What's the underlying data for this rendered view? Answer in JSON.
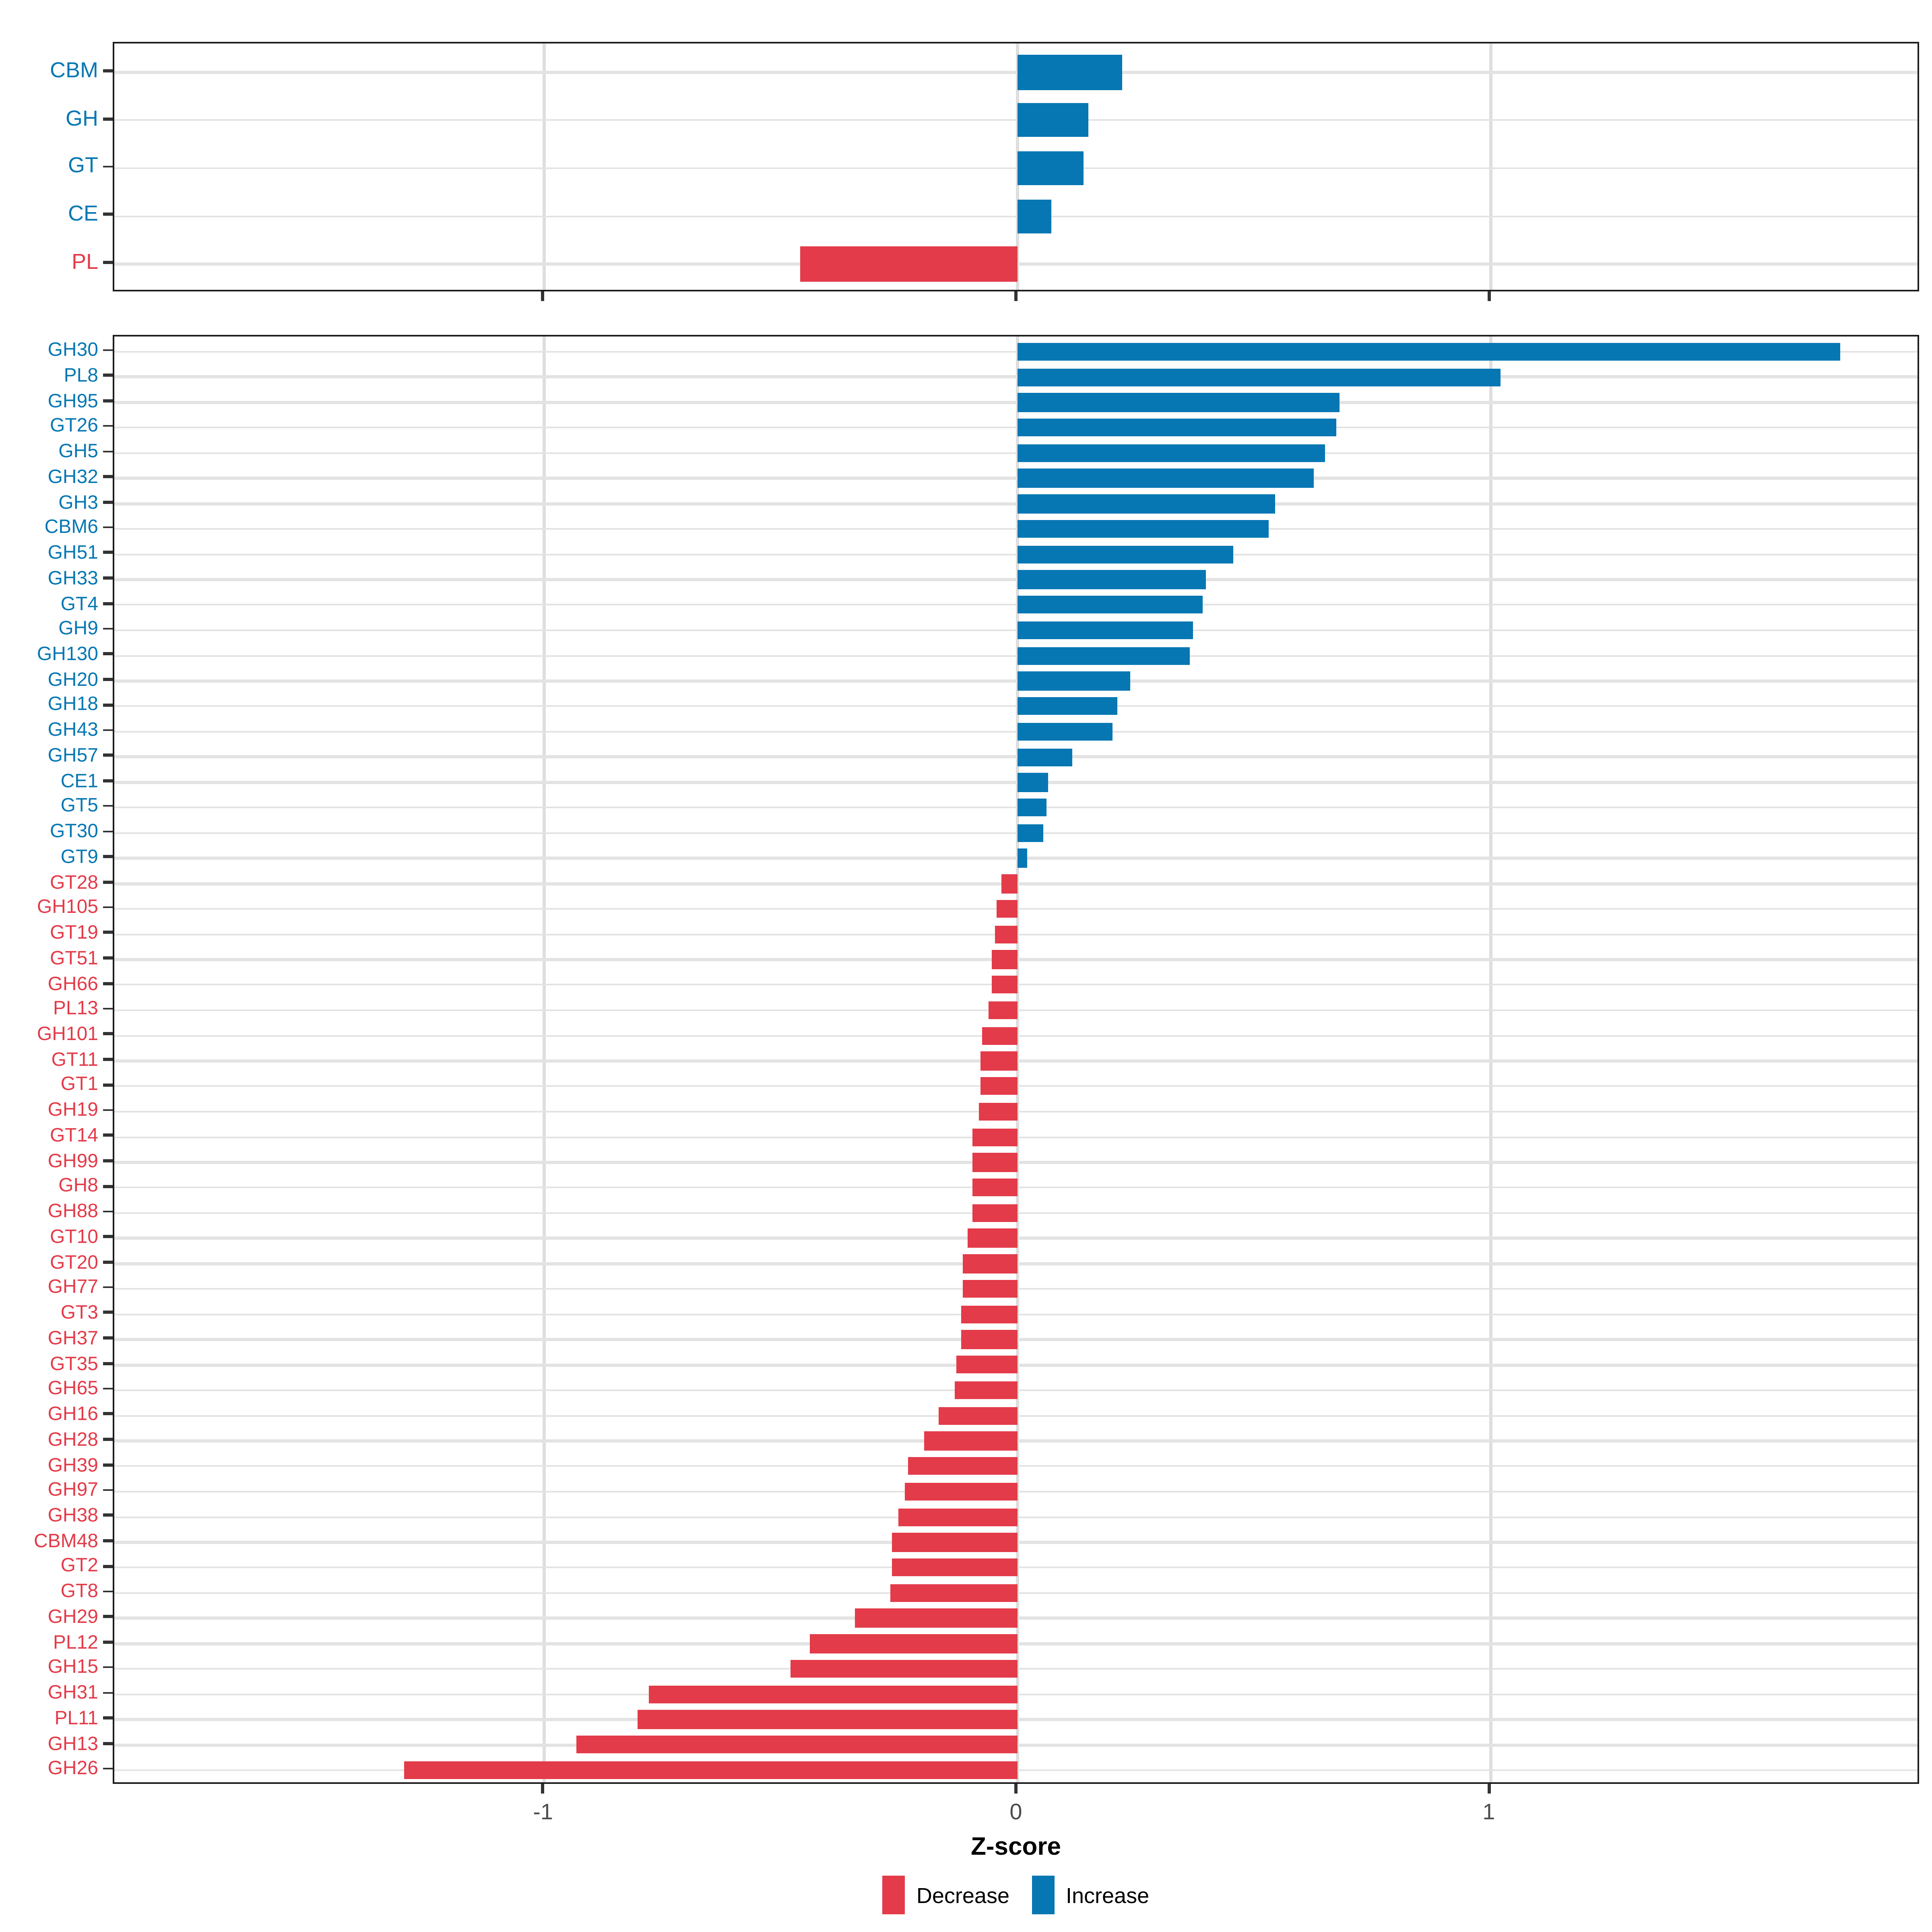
{
  "colors": {
    "decrease": "#E33B49",
    "increase": "#0677B3",
    "grid": "#e3e3e3",
    "axis_text": "#4d4d4d",
    "panel_border": "#1c1c1c",
    "background": "#ffffff"
  },
  "x_axis": {
    "label": "Z-score",
    "ticks": [
      -1,
      0,
      1
    ],
    "tick_labels": [
      "-1",
      "0",
      "1"
    ]
  },
  "legend": {
    "items": [
      {
        "label": "Decrease",
        "key": "decrease"
      },
      {
        "label": "Increase",
        "key": "increase"
      }
    ]
  },
  "chart_data": [
    {
      "id": "class-panel",
      "type": "bar",
      "orientation": "horizontal",
      "title": "",
      "xlabel": "Z-score",
      "ylabel": "",
      "xlim": [
        -1.91,
        1.91
      ],
      "grid": true,
      "x_ticks": [
        -1,
        0,
        1
      ],
      "categories": [
        "CBM",
        "GH",
        "GT",
        "CE",
        "PL"
      ],
      "values": [
        0.22,
        0.15,
        0.14,
        0.07,
        -0.46
      ]
    },
    {
      "id": "family-panel",
      "type": "bar",
      "orientation": "horizontal",
      "title": "",
      "xlabel": "Z-score",
      "ylabel": "",
      "xlim": [
        -1.91,
        1.91
      ],
      "grid": true,
      "x_ticks": [
        -1,
        0,
        1
      ],
      "categories": [
        "GH30",
        "PL8",
        "GH95",
        "GT26",
        "GH5",
        "GH32",
        "GH3",
        "CBM6",
        "GH51",
        "GH33",
        "GT4",
        "GH9",
        "GH130",
        "GH20",
        "GH18",
        "GH43",
        "GH57",
        "CE1",
        "GT5",
        "GT30",
        "GT9",
        "GT28",
        "GH105",
        "GT19",
        "GT51",
        "GH66",
        "PL13",
        "GH101",
        "GT11",
        "GT1",
        "GH19",
        "GT14",
        "GH99",
        "GH8",
        "GH88",
        "GT10",
        "GT20",
        "GH77",
        "GT3",
        "GH37",
        "GT35",
        "GH65",
        "GH16",
        "GH28",
        "GH39",
        "GH97",
        "GH38",
        "CBM48",
        "GT2",
        "GT8",
        "GH29",
        "PL12",
        "GH15",
        "GH31",
        "PL11",
        "GH13",
        "GH26"
      ],
      "values": [
        1.74,
        1.02,
        0.68,
        0.675,
        0.65,
        0.625,
        0.545,
        0.53,
        0.455,
        0.4,
        0.39,
        0.37,
        0.365,
        0.24,
        0.21,
        0.2,
        0.117,
        0.066,
        0.06,
        0.056,
        0.021,
        -0.035,
        -0.045,
        -0.046,
        -0.053,
        -0.055,
        -0.061,
        -0.076,
        -0.079,
        -0.08,
        -0.081,
        -0.094,
        -0.095,
        -0.096,
        -0.097,
        -0.106,
        -0.115,
        -0.116,
        -0.118,
        -0.119,
        -0.13,
        -0.133,
        -0.167,
        -0.198,
        -0.231,
        -0.24,
        -0.253,
        -0.264,
        -0.266,
        -0.269,
        -0.344,
        -0.439,
        -0.479,
        -0.78,
        -0.804,
        -0.933,
        -1.297
      ]
    }
  ]
}
